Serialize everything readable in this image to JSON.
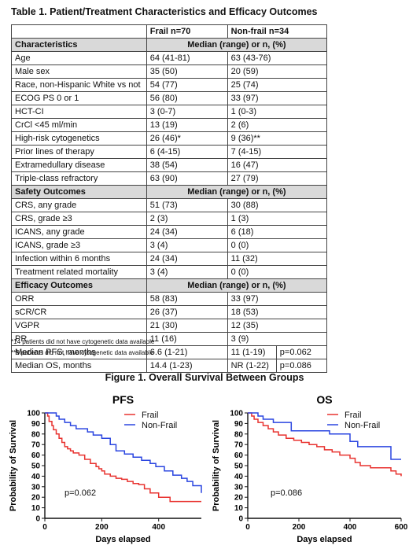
{
  "table": {
    "title": "Table 1. Patient/Treatment Characteristics and Efficacy Outcomes",
    "header": [
      "",
      "Frail n=70",
      "Non-frail n=34"
    ],
    "sections": [
      {
        "label": "Characteristics",
        "col_header": "Median (range) or n, (%)",
        "rows": [
          {
            "label": "Age",
            "frail": "64 (41-81)",
            "nonfrail": "63 (43-76)"
          },
          {
            "label": "Male sex",
            "frail": "35 (50)",
            "nonfrail": "20 (59)"
          },
          {
            "label": "Race, non-Hispanic White vs not",
            "frail": "54 (77)",
            "nonfrail": "25 (74)"
          },
          {
            "label": "ECOG PS 0 or 1",
            "frail": "56 (80)",
            "nonfrail": "33 (97)"
          },
          {
            "label": "HCT-CI",
            "frail": "3 (0-7)",
            "nonfrail": "1 (0-3)"
          },
          {
            "label": "CrCl <45 ml/min",
            "frail": "13 (19)",
            "nonfrail": "2 (6)"
          },
          {
            "label": "High-risk cytogenetics",
            "frail": "26 (46)*",
            "nonfrail": "9 (36)**"
          },
          {
            "label": "Prior lines of therapy",
            "frail": "6 (4-15)",
            "nonfrail": "7 (4-15)"
          },
          {
            "label": "Extramedullary disease",
            "frail": "38 (54)",
            "nonfrail": "16 (47)"
          },
          {
            "label": "Triple-class refractory",
            "frail": "63 (90)",
            "nonfrail": "27 (79)"
          }
        ]
      },
      {
        "label": "Safety Outcomes",
        "col_header": "Median (range) or n, (%)",
        "rows": [
          {
            "label": "CRS, any grade",
            "frail": "51 (73)",
            "nonfrail": "30 (88)"
          },
          {
            "label": "CRS, grade ≥3",
            "frail": "2 (3)",
            "nonfrail": "1 (3)"
          },
          {
            "label": "ICANS, any grade",
            "frail": "24 (34)",
            "nonfrail": "6 (18)"
          },
          {
            "label": "ICANS, grade ≥3",
            "frail": "3 (4)",
            "nonfrail": "0 (0)"
          },
          {
            "label": "Infection within 6 months",
            "frail": "24 (34)",
            "nonfrail": "11 (32)"
          },
          {
            "label": "Treatment related mortality",
            "frail": "3 (4)",
            "nonfrail": "0 (0)"
          }
        ]
      },
      {
        "label": "Efficacy Outcomes",
        "col_header": "Median (range) or n, (%)",
        "rows": [
          {
            "label": "ORR",
            "frail": "58 (83)",
            "nonfrail": "33 (97)"
          },
          {
            "label": "sCR/CR",
            "frail": "26 (37)",
            "nonfrail": "18 (53)"
          },
          {
            "label": "VGPR",
            "frail": "21 (30)",
            "nonfrail": "12 (35)"
          },
          {
            "label": "PR",
            "frail": "11 (16)",
            "nonfrail": "3 (9)"
          },
          {
            "label": "Median PFS, months",
            "frail": "6.6 (1-21)",
            "nonfrail": "11 (1-19)",
            "p": "p=0.062"
          },
          {
            "label": "Median OS, months",
            "frail": "14.4 (1-23)",
            "nonfrail": "NR (1-22)",
            "p": "p=0.086"
          }
        ]
      }
    ],
    "footnotes": [
      "*14 patients did not have cytogenetic data available",
      "**9 patients did not have cytogenetic data available"
    ]
  },
  "figure_title": "Figure 1. Overall Survival Between Groups",
  "chart_data": [
    {
      "type": "line",
      "title": "PFS",
      "xlabel": "Days elapsed",
      "ylabel": "Probability of Survival",
      "xlim": [
        0,
        550
      ],
      "ylim": [
        0,
        100
      ],
      "xticks": [
        0,
        200,
        400
      ],
      "yticks": [
        0,
        10,
        20,
        30,
        40,
        50,
        60,
        70,
        80,
        90,
        100
      ],
      "legend": "top-right",
      "annotation": "p=0.062",
      "series": [
        {
          "name": "Frail",
          "color": "#e8322f",
          "x": [
            0,
            10,
            15,
            25,
            30,
            40,
            50,
            60,
            70,
            80,
            90,
            100,
            120,
            140,
            160,
            180,
            190,
            200,
            210,
            230,
            250,
            270,
            290,
            310,
            330,
            350,
            370,
            400,
            440,
            480,
            550
          ],
          "y": [
            100,
            97,
            92,
            88,
            84,
            80,
            76,
            72,
            68,
            66,
            64,
            62,
            60,
            56,
            52,
            49,
            47,
            45,
            42,
            40,
            38,
            37,
            35,
            33,
            32,
            28,
            24,
            20,
            16,
            16,
            16
          ]
        },
        {
          "name": "Non-Frail",
          "color": "#2a45e0",
          "x": [
            0,
            30,
            40,
            50,
            70,
            90,
            110,
            150,
            170,
            200,
            230,
            250,
            280,
            310,
            340,
            370,
            390,
            420,
            450,
            480,
            500,
            520,
            550
          ],
          "y": [
            100,
            100,
            97,
            94,
            91,
            88,
            85,
            82,
            79,
            76,
            70,
            64,
            61,
            58,
            55,
            52,
            49,
            45,
            41,
            38,
            35,
            31,
            24
          ]
        }
      ]
    },
    {
      "type": "line",
      "title": "OS",
      "xlabel": "Days elapsed",
      "ylabel": "Probability of Survival",
      "xlim": [
        0,
        600
      ],
      "ylim": [
        0,
        100
      ],
      "xticks": [
        0,
        200,
        400,
        600
      ],
      "yticks": [
        0,
        10,
        20,
        30,
        40,
        50,
        60,
        70,
        80,
        90,
        100
      ],
      "legend": "top-right",
      "annotation": "p=0.086",
      "series": [
        {
          "name": "Frail",
          "color": "#e8322f",
          "x": [
            0,
            15,
            25,
            40,
            60,
            80,
            100,
            120,
            150,
            180,
            210,
            240,
            270,
            300,
            330,
            360,
            400,
            420,
            440,
            480,
            560,
            580,
            600
          ],
          "y": [
            100,
            97,
            94,
            91,
            88,
            85,
            82,
            79,
            76,
            74,
            72,
            70,
            68,
            65,
            63,
            60,
            57,
            53,
            50,
            48,
            45,
            42,
            40
          ]
        },
        {
          "name": "Non-Frail",
          "color": "#2a45e0",
          "x": [
            0,
            40,
            60,
            100,
            170,
            260,
            320,
            400,
            430,
            560,
            600
          ],
          "y": [
            100,
            97,
            94,
            91,
            83,
            83,
            80,
            73,
            68,
            56,
            56
          ]
        }
      ]
    }
  ]
}
